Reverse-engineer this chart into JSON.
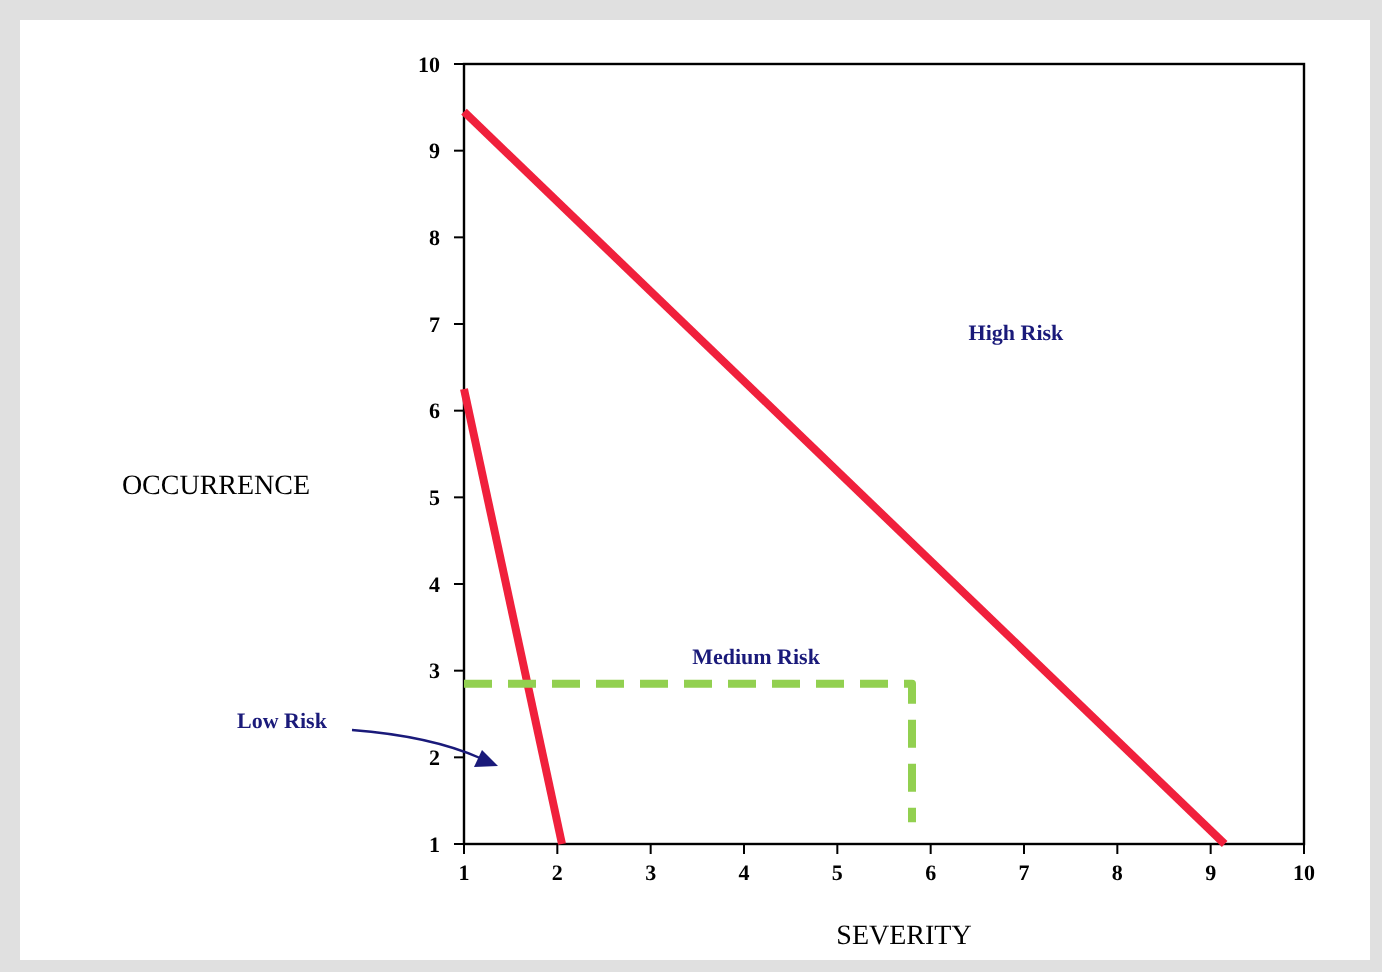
{
  "chart_data": {
    "type": "line",
    "xlabel": "SEVERITY",
    "ylabel": "OCCURRENCE",
    "xlim": [
      1,
      10
    ],
    "xticks": [
      1,
      2,
      3,
      4,
      5,
      6,
      7,
      8,
      9,
      10
    ],
    "ylim": [
      1,
      10
    ],
    "yticks": [
      1,
      2,
      3,
      4,
      5,
      6,
      7,
      8,
      9,
      10
    ],
    "grid": false,
    "series": [
      {
        "color": "#f0203c",
        "x": [
          1,
          9.15
        ],
        "values": [
          9.45,
          1
        ]
      },
      {
        "color": "#f0203c",
        "x": [
          1,
          2.05
        ],
        "values": [
          6.25,
          1
        ]
      },
      {
        "color": "#92d050",
        "x": [
          1,
          5.8,
          5.8
        ],
        "values": [
          2.85,
          2.85,
          1.25
        ],
        "line_style": "dashed"
      }
    ],
    "annotations": [
      "High Risk",
      "Medium Risk",
      "Low Risk"
    ]
  }
}
